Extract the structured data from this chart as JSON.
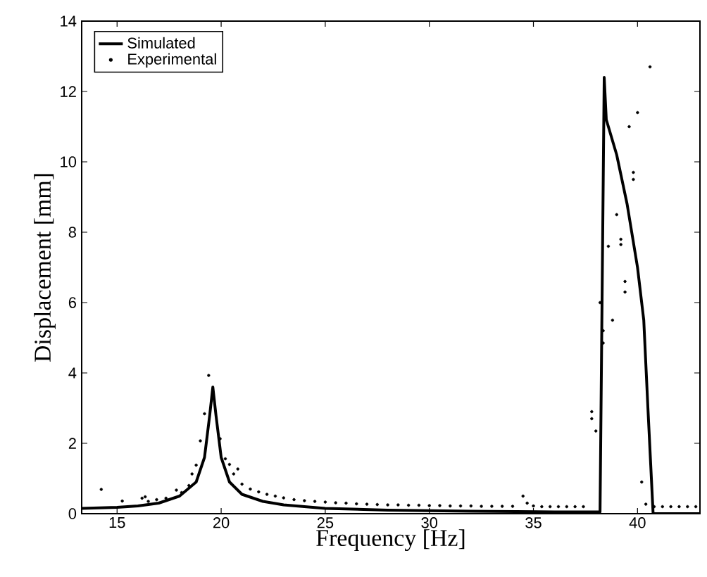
{
  "chart_data": {
    "type": "line",
    "xlabel": "Frequency [Hz]",
    "ylabel": "Displacement [mm]",
    "xlim": [
      13.3,
      43
    ],
    "ylim": [
      0,
      14
    ],
    "xticks": [
      15,
      20,
      25,
      30,
      35,
      40
    ],
    "yticks": [
      0,
      2,
      4,
      6,
      8,
      10,
      12,
      14
    ],
    "grid": false,
    "legend": "top left",
    "series": [
      {
        "name": "Simulated",
        "color": "#000000",
        "marker": "none",
        "line_style": "solid",
        "x": [
          13.3,
          15,
          16,
          17,
          18,
          18.8,
          19.2,
          19.45,
          19.6,
          19.75,
          20.0,
          20.4,
          21,
          22,
          23,
          25,
          28,
          32,
          36,
          38.2,
          38.4,
          38.5,
          39.0,
          39.5,
          39.75,
          40.0,
          40.3,
          40.5,
          40.75,
          43
        ],
        "values": [
          0.15,
          0.18,
          0.22,
          0.3,
          0.5,
          0.9,
          1.6,
          2.8,
          3.6,
          2.8,
          1.6,
          0.9,
          0.55,
          0.35,
          0.25,
          0.15,
          0.1,
          0.07,
          0.05,
          0.05,
          12.4,
          11.2,
          10.2,
          8.8,
          7.9,
          7.0,
          5.5,
          3.0,
          0,
          0
        ]
      },
      {
        "name": "Experimental",
        "type": "scatter",
        "color": "#000000",
        "marker": "circle",
        "x": [
          14.24,
          15.25,
          16.2,
          16.35,
          16.5,
          16.9,
          17.35,
          17.85,
          18.1,
          18.45,
          18.6,
          18.8,
          19.0,
          19.2,
          19.4,
          19.95,
          20.2,
          20.4,
          20.6,
          20.8,
          21.0,
          21.4,
          21.8,
          22.2,
          22.6,
          23.0,
          23.5,
          24.0,
          24.5,
          25.0,
          25.5,
          26.0,
          26.5,
          27.0,
          27.5,
          28.0,
          28.5,
          29.0,
          29.5,
          30.0,
          30.5,
          31.0,
          31.5,
          32.0,
          32.5,
          33.0,
          33.5,
          34.0,
          34.5,
          34.7,
          35.0,
          35.4,
          35.8,
          36.2,
          36.6,
          37.0,
          37.4,
          37.8,
          37.8,
          38.0,
          38.2,
          38.35,
          38.35,
          38.6,
          38.8,
          39.0,
          39.2,
          39.2,
          39.4,
          39.4,
          39.6,
          39.8,
          39.8,
          40.0,
          40.2,
          40.4,
          40.6,
          40.8,
          41.2,
          41.6,
          42.0,
          42.4,
          42.8
        ],
        "values": [
          0.69,
          0.36,
          0.44,
          0.48,
          0.35,
          0.4,
          0.44,
          0.67,
          0.6,
          0.8,
          1.13,
          1.38,
          2.07,
          2.84,
          3.93,
          2.13,
          1.56,
          1.4,
          1.13,
          1.27,
          0.84,
          0.7,
          0.62,
          0.55,
          0.5,
          0.45,
          0.4,
          0.37,
          0.35,
          0.33,
          0.31,
          0.3,
          0.28,
          0.27,
          0.26,
          0.25,
          0.25,
          0.24,
          0.24,
          0.23,
          0.23,
          0.22,
          0.22,
          0.22,
          0.21,
          0.21,
          0.21,
          0.21,
          0.5,
          0.3,
          0.22,
          0.2,
          0.2,
          0.2,
          0.2,
          0.2,
          0.2,
          2.9,
          2.7,
          2.35,
          6.0,
          5.2,
          4.85,
          7.6,
          5.5,
          8.5,
          7.8,
          7.65,
          6.6,
          6.3,
          11.0,
          9.7,
          9.5,
          11.4,
          0.9,
          0.27,
          12.7,
          0.2,
          0.2,
          0.2,
          0.2,
          0.2,
          0.2
        ]
      }
    ]
  }
}
